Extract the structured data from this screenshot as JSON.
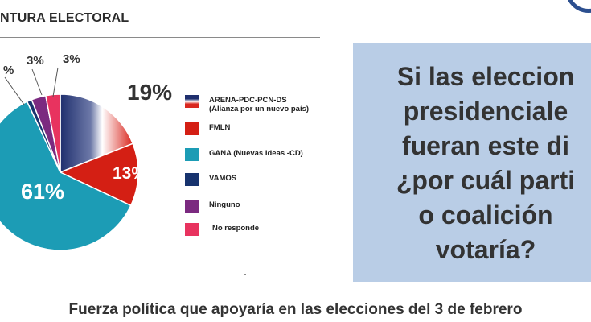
{
  "header": {
    "title": "NTURA ELECTORAL"
  },
  "question": {
    "text": "Si las eleccion\npresidenciale\nfueran este di\n¿por cuál parti\no coalición\nvotaría?"
  },
  "footer": {
    "caption": "Fuerza política que apoyaría en las elecciones del 3 de febrero"
  },
  "chart_data": {
    "type": "pie",
    "title": "",
    "series": [
      {
        "name": "ARENA-PDC-PCN-DS\n(Alianza por un nuevo país)",
        "value": 19,
        "label": "19%",
        "color": "#d9271f",
        "gradient": [
          "#1f2f6e",
          "#ffffff",
          "#d9271f"
        ]
      },
      {
        "name": "FMLN",
        "value": 13,
        "label": "13%",
        "color": "#d41f14"
      },
      {
        "name": "GANA (Nuevas Ideas -CD)",
        "value": 61,
        "label": "61%",
        "color": "#1c9cb5"
      },
      {
        "name": "VAMOS",
        "value": 1,
        "label": "%",
        "color": "#17336e"
      },
      {
        "name": "Ninguno",
        "value": 3,
        "label": "3%",
        "color": "#7b2a80"
      },
      {
        "name": "No responde",
        "value": 3,
        "label": "3%",
        "color": "#e8335f"
      }
    ],
    "legend_position": "right"
  }
}
